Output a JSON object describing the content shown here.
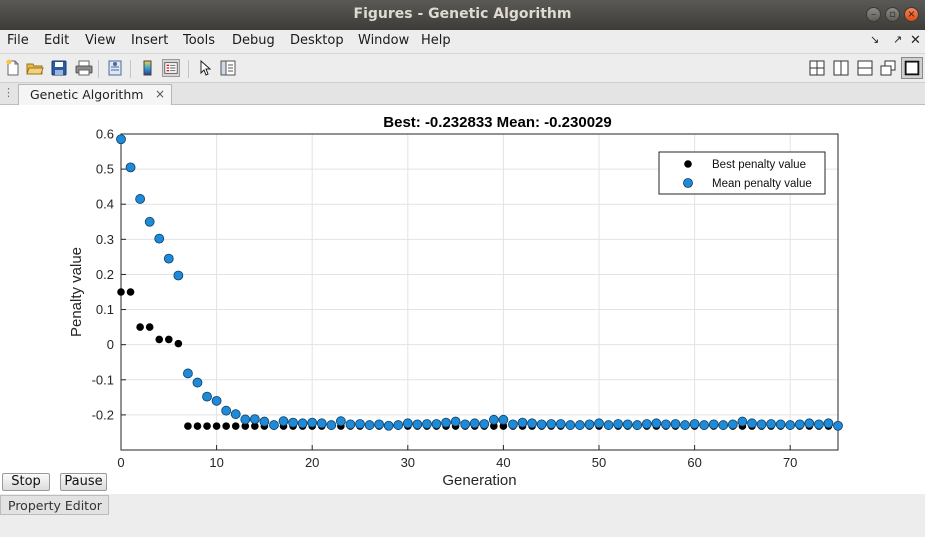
{
  "window": {
    "title": "Figures - Genetic Algorithm"
  },
  "menu": [
    "File",
    "Edit",
    "View",
    "Insert",
    "Tools",
    "Debug",
    "Desktop",
    "Window",
    "Help"
  ],
  "tab": {
    "label": "Genetic Algorithm",
    "close": "×"
  },
  "buttons": {
    "stop": "Stop",
    "pause": "Pause"
  },
  "property_editor": "Property Editor",
  "chart_data": {
    "type": "scatter",
    "title": "Best: -0.232833 Mean: -0.230029",
    "xlabel": "Generation",
    "ylabel": "Penalty value",
    "xlim": [
      0,
      75
    ],
    "ylim": [
      -0.3,
      0.6
    ],
    "xticks": [
      0,
      10,
      20,
      30,
      40,
      50,
      60,
      70
    ],
    "yticks": [
      -0.2,
      -0.1,
      0,
      0.1,
      0.2,
      0.3,
      0.4,
      0.5,
      0.6
    ],
    "ytick_labels": [
      "-0.2",
      "-0.1",
      "0",
      "0.1",
      "0.2",
      "0.3",
      "0.4",
      "0.5",
      "0.6"
    ],
    "grid": true,
    "legend_position": "top-right",
    "series": [
      {
        "name": "Best penalty value",
        "color": "#000000",
        "values": [
          0.15,
          0.15,
          0.05,
          0.05,
          0.015,
          0.015,
          0.003,
          -0.232,
          -0.232,
          -0.232,
          -0.232,
          -0.232,
          -0.232,
          -0.232,
          -0.232,
          -0.232,
          -0.232,
          -0.232,
          -0.232,
          -0.232,
          -0.232,
          -0.232,
          -0.232,
          -0.232,
          -0.232,
          -0.232,
          -0.232,
          -0.232,
          -0.232,
          -0.232,
          -0.232,
          -0.232,
          -0.232,
          -0.232,
          -0.232,
          -0.232,
          -0.232,
          -0.232,
          -0.232,
          -0.232,
          -0.232,
          -0.232,
          -0.232,
          -0.232,
          -0.232,
          -0.232,
          -0.232,
          -0.232,
          -0.232,
          -0.232,
          -0.232,
          -0.232,
          -0.232,
          -0.232,
          -0.232,
          -0.232,
          -0.232,
          -0.232,
          -0.232,
          -0.232,
          -0.232,
          -0.232,
          -0.232,
          -0.232,
          -0.232,
          -0.232,
          -0.232,
          -0.232,
          -0.232,
          -0.232,
          -0.232,
          -0.232,
          -0.232,
          -0.232,
          -0.232,
          -0.232
        ]
      },
      {
        "name": "Mean penalty value",
        "color": "#1f8ad8",
        "values": [
          0.585,
          0.505,
          0.415,
          0.35,
          0.302,
          0.245,
          0.197,
          -0.082,
          -0.108,
          -0.148,
          -0.16,
          -0.188,
          -0.198,
          -0.213,
          -0.212,
          -0.219,
          -0.229,
          -0.218,
          -0.222,
          -0.224,
          -0.222,
          -0.224,
          -0.229,
          -0.218,
          -0.227,
          -0.226,
          -0.229,
          -0.227,
          -0.231,
          -0.229,
          -0.224,
          -0.227,
          -0.226,
          -0.226,
          -0.222,
          -0.219,
          -0.227,
          -0.224,
          -0.226,
          -0.214,
          -0.214,
          -0.227,
          -0.222,
          -0.224,
          -0.227,
          -0.226,
          -0.226,
          -0.229,
          -0.229,
          -0.227,
          -0.224,
          -0.229,
          -0.226,
          -0.227,
          -0.229,
          -0.226,
          -0.224,
          -0.227,
          -0.226,
          -0.229,
          -0.226,
          -0.229,
          -0.227,
          -0.229,
          -0.227,
          -0.219,
          -0.224,
          -0.227,
          -0.226,
          -0.227,
          -0.229,
          -0.227,
          -0.224,
          -0.227,
          -0.224,
          -0.231
        ]
      }
    ]
  }
}
